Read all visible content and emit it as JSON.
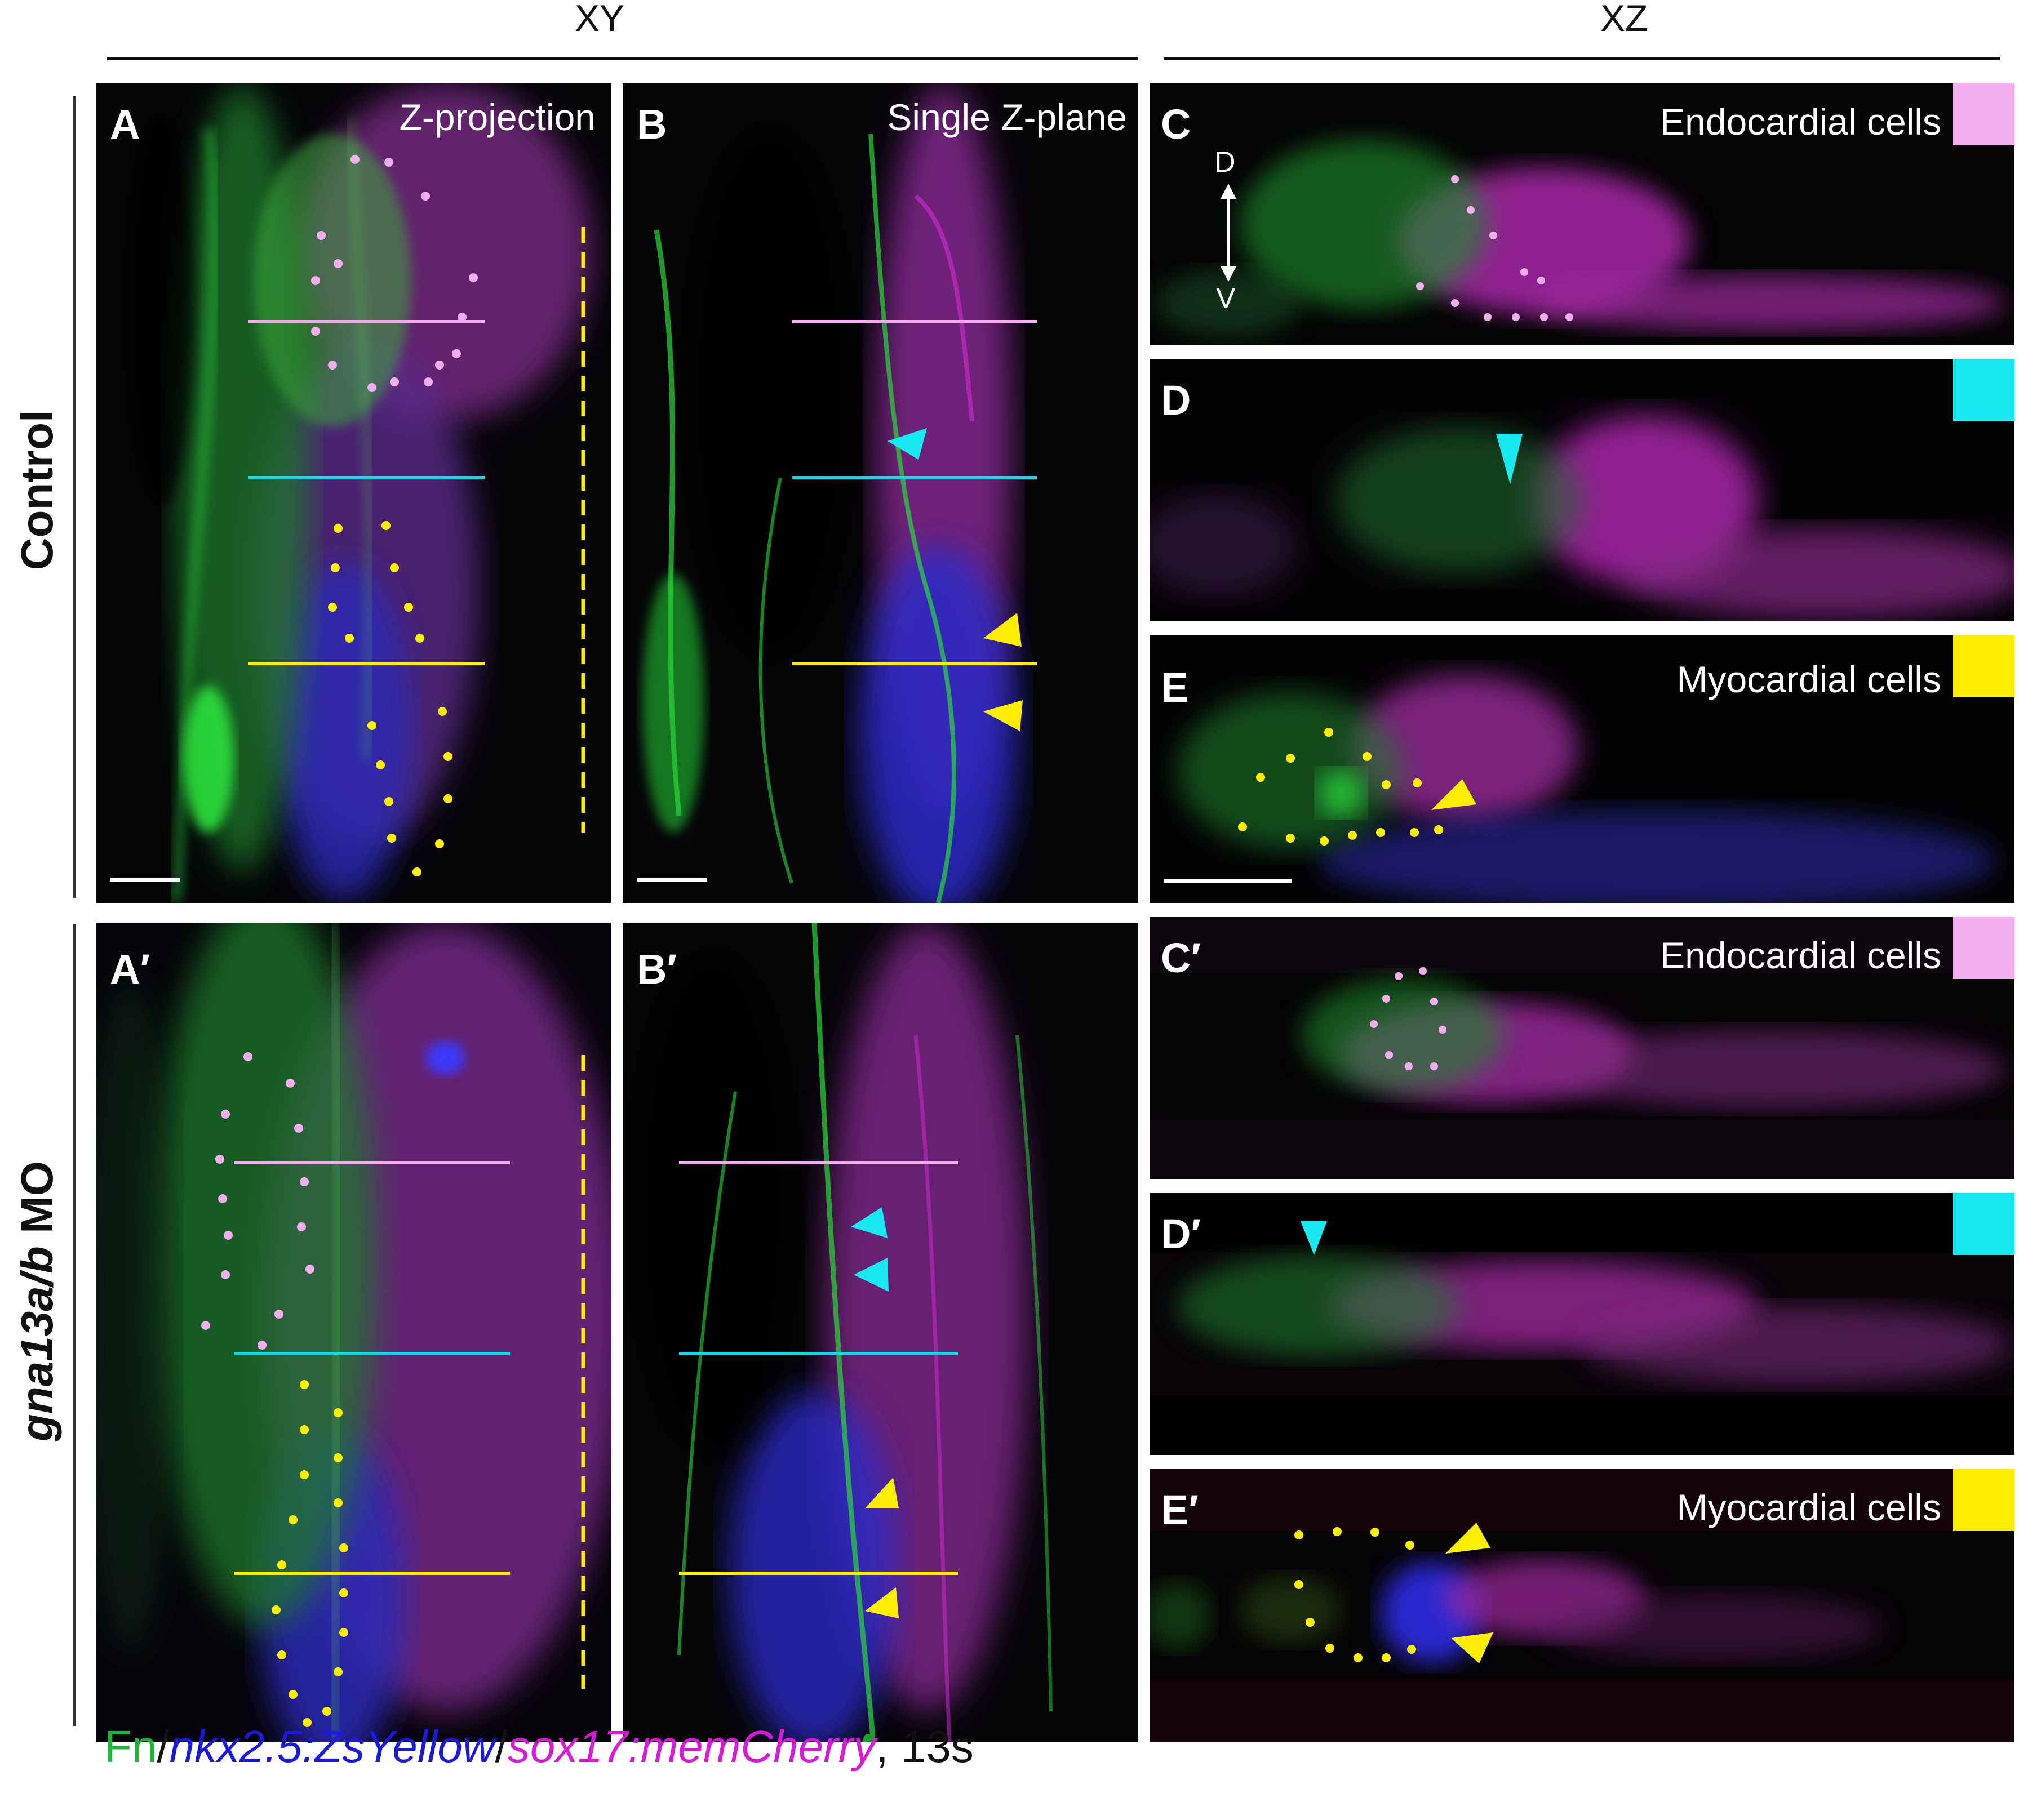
{
  "headers": {
    "xy": "XY",
    "xz": "XZ"
  },
  "row_labels": {
    "control": "Control",
    "mo_gene": "gna13a/b",
    "mo_suffix": " MO"
  },
  "panels": {
    "A": {
      "label": "A",
      "caption": "Z-projection"
    },
    "B": {
      "label": "B",
      "caption": "Single Z-plane"
    },
    "C": {
      "label": "C",
      "caption": "Endocardial cells",
      "swatch": "#f4aef0"
    },
    "D": {
      "label": "D",
      "caption": "",
      "swatch": "#18e8f0"
    },
    "E": {
      "label": "E",
      "caption": "Myocardial cells",
      "swatch": "#ffee00"
    },
    "A2": {
      "label": "A′"
    },
    "B2": {
      "label": "B′"
    },
    "C2": {
      "label": "C′",
      "caption": "Endocardial cells",
      "swatch": "#f4aef0"
    },
    "D2": {
      "label": "D′",
      "swatch": "#18e8f0"
    },
    "E2": {
      "label": "E′",
      "caption": "Myocardial cells",
      "swatch": "#ffee00"
    }
  },
  "axis_indicator": {
    "dorsal": "D",
    "ventral": "V"
  },
  "legend": {
    "fn": "Fn",
    "sep1": "/",
    "nkx": "nkx2.5:ZsYellow",
    "sep2": "/",
    "sox": "sox17:memCherry",
    "stage": ", 13s"
  },
  "colors": {
    "green": "#22d63a",
    "blue": "#2a2ad8",
    "magenta": "#d62ad6",
    "pink_line": "#f4aef0",
    "cyan_line": "#18d8e8",
    "yellow_line": "#ffee00"
  },
  "icons": [
    "arrowhead-icon",
    "double-arrow-icon",
    "scale-bar"
  ]
}
